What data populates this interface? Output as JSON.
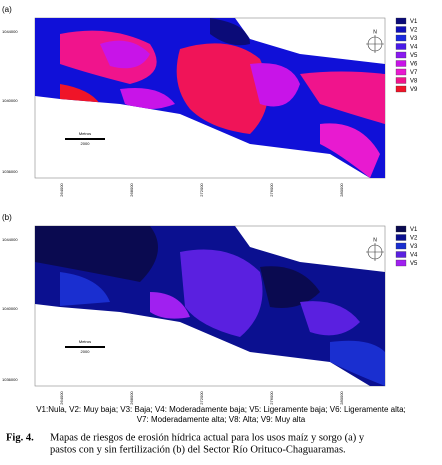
{
  "panels": [
    {
      "label": "(a)",
      "legend": [
        {
          "name": "V1",
          "color": "#0b0b78"
        },
        {
          "name": "V2",
          "color": "#1010b8"
        },
        {
          "name": "V3",
          "color": "#1a2ae0"
        },
        {
          "name": "V4",
          "color": "#4a1ae8"
        },
        {
          "name": "V5",
          "color": "#8a1af0"
        },
        {
          "name": "V6",
          "color": "#c814e8"
        },
        {
          "name": "V7",
          "color": "#e81ad0"
        },
        {
          "name": "V8",
          "color": "#f0148c"
        },
        {
          "name": "V9",
          "color": "#f01428"
        }
      ],
      "y_labels": [
        "1044000",
        "1040000",
        "1036000"
      ],
      "x_labels": [
        "264000",
        "268000",
        "272000",
        "276000",
        "280000"
      ],
      "scale": {
        "unit": "Metros",
        "length": "2000"
      },
      "north": "N"
    },
    {
      "label": "(b)",
      "legend": [
        {
          "name": "V1",
          "color": "#0a0a50"
        },
        {
          "name": "V2",
          "color": "#0b1090"
        },
        {
          "name": "V3",
          "color": "#1a2fd0"
        },
        {
          "name": "V4",
          "color": "#5a20e0"
        },
        {
          "name": "V5",
          "color": "#a020f0"
        }
      ],
      "y_labels": [
        "1044000",
        "1040000",
        "1036000"
      ],
      "x_labels": [
        "264000",
        "268000",
        "272000",
        "276000",
        "280000"
      ],
      "scale": {
        "unit": "Metros",
        "length": "2000"
      },
      "north": "N"
    }
  ],
  "legend_note": [
    "V1:Nula, V2: Muy baja; V3: Baja; V4: Moderadamente baja; V5: Ligeramente baja; V6: Ligeramente alta;",
    "V7: Moderadamente alta; V8: Alta; V9: Muy alta"
  ],
  "caption": {
    "label": "Fig. 4.",
    "lines": [
      "Mapas de riesgos de erosión hídrica actual para los usos maíz y sorgo (a) y",
      "pastos con y sin fertilización (b) del Sector Río Orituco-Chaguaramas."
    ]
  }
}
